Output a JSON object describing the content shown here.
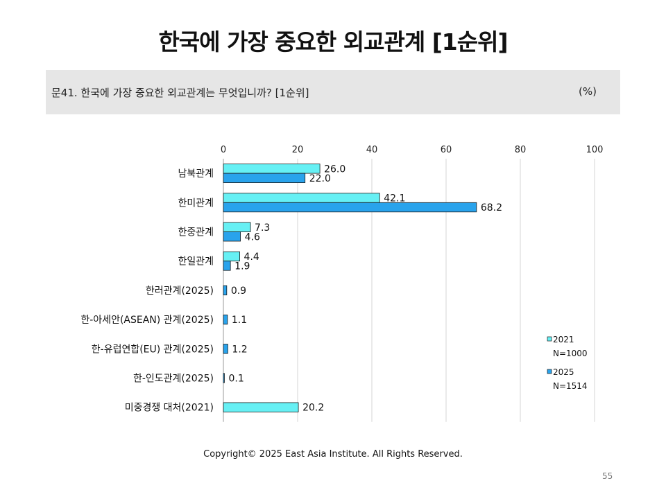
{
  "title": "한국에 가장 중요한 외교관계 [1순위]",
  "question": {
    "text": "문41. 한국에 가장 중요한 외교관계는 무엇입니까? [1순위]",
    "unit": "(%)"
  },
  "footer": {
    "copyright": "Copyright© 2025 East Asia Institute. All Rights Reserved.",
    "page": "55"
  },
  "chart_data": {
    "type": "bar",
    "orientation": "horizontal",
    "categories": [
      "남북관계",
      "한미관계",
      "한중관계",
      "한일관계",
      "한러관계(2025)",
      "한-아세안(ASEAN) 관계(2025)",
      "한-유럽연합(EU) 관계(2025)",
      "한-인도관계(2025)",
      "미중경쟁 대처(2021)"
    ],
    "series": [
      {
        "name": "2021",
        "sublabel": "N=1000",
        "color": "#66f0f4",
        "values": [
          26.0,
          42.1,
          7.3,
          4.4,
          null,
          null,
          null,
          null,
          20.2
        ],
        "labels": [
          "26.0",
          "42.1",
          "7.3",
          "4.4",
          null,
          null,
          null,
          null,
          "20.2"
        ]
      },
      {
        "name": "2025",
        "sublabel": "N=1514",
        "color": "#29a3ec",
        "values": [
          22.0,
          68.2,
          4.6,
          1.9,
          0.9,
          1.1,
          1.2,
          0.1,
          null
        ],
        "labels": [
          "22.0",
          "68.2",
          "4.6",
          "1.9",
          "0.9",
          "1.1",
          "1.2",
          "0.1",
          null
        ]
      }
    ],
    "xlim": [
      0,
      100
    ],
    "ticks": [
      "0",
      "20",
      "40",
      "60",
      "80",
      "100"
    ],
    "axis_position": "top",
    "grid": true,
    "legend_position": "right"
  }
}
